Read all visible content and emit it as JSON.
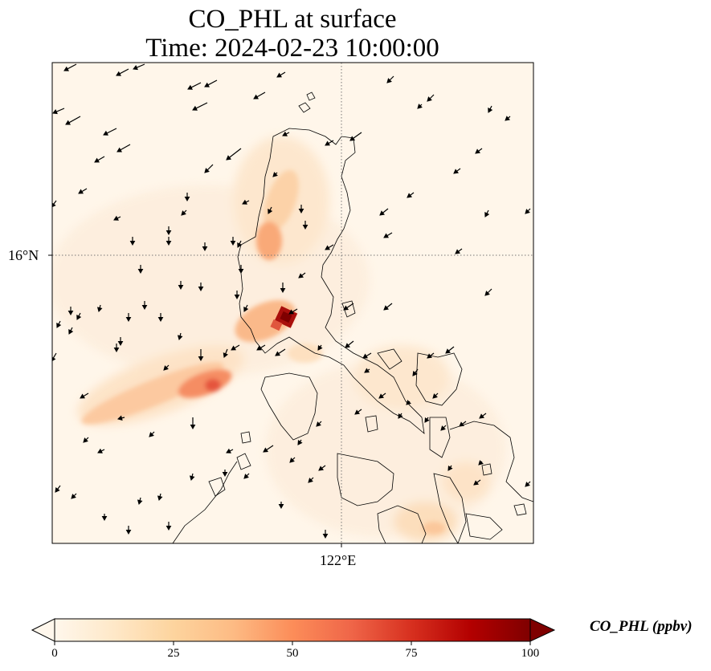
{
  "title": {
    "line1": "CO_PHL at surface",
    "line2": "Time: 2024-02-23 10:00:00"
  },
  "axes": {
    "lat_label": "16°N",
    "lon_label": "122°E"
  },
  "colorbar": {
    "label": "CO_PHL (ppbv)",
    "ticks": [
      "0",
      "25",
      "50",
      "75",
      "100"
    ],
    "range": [
      0,
      100
    ],
    "extend": "both",
    "colormap": "OrRd",
    "colors": [
      "#fff7ec",
      "#fee8c8",
      "#fdd49e",
      "#fdbb84",
      "#fc8d59",
      "#ef6548",
      "#d7301f",
      "#b30000",
      "#7f0000"
    ]
  },
  "map": {
    "region": "Luzon, Philippines",
    "gridlines": "dotted",
    "wind_vectors": "shown",
    "coastlines": "shown"
  }
}
